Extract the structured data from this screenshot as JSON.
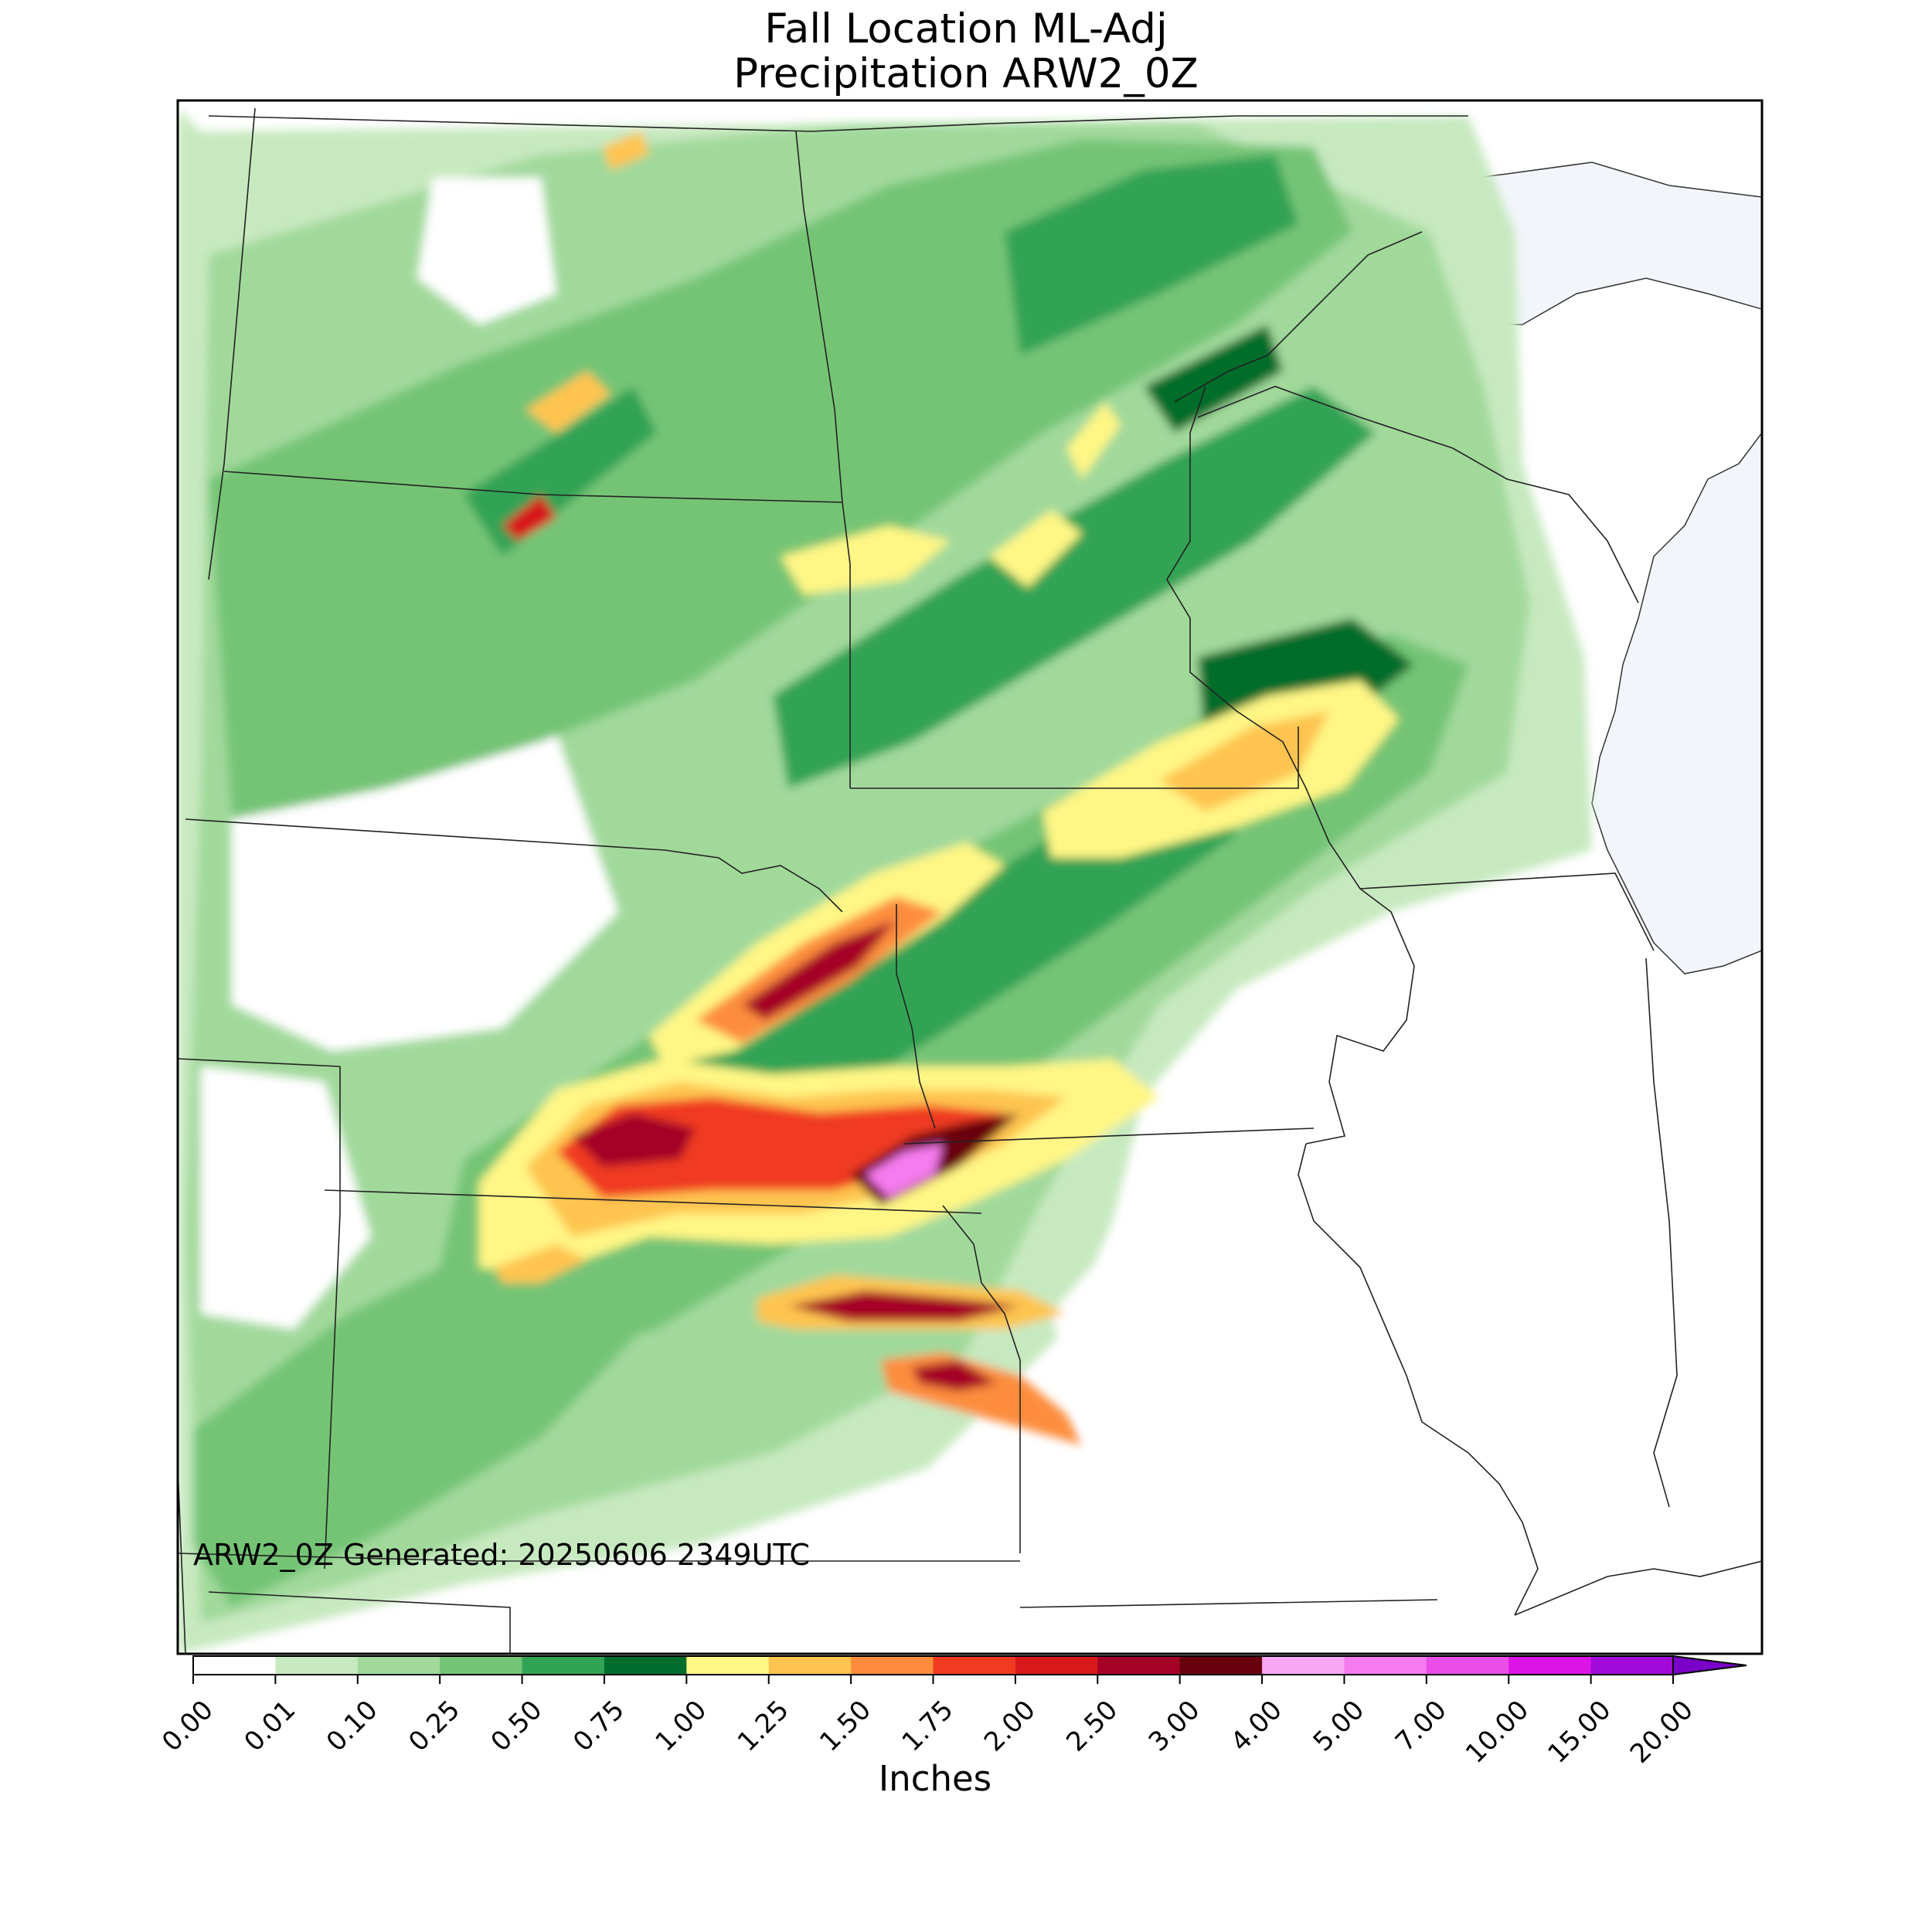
{
  "title": {
    "line1": "Fall Location ML-Adj",
    "line2": "Precipitation ARW2_0Z"
  },
  "footer_note": "ARW2_0Z Generated: 20250606 2349UTC",
  "colorbar": {
    "label": "Inches",
    "ticks": [
      "0.00",
      "0.01",
      "0.10",
      "0.25",
      "0.50",
      "0.75",
      "1.00",
      "1.25",
      "1.50",
      "1.75",
      "2.00",
      "2.50",
      "3.00",
      "4.00",
      "5.00",
      "7.00",
      "10.00",
      "15.00",
      "20.00"
    ],
    "colors": [
      "#ffffff",
      "#c7e9c0",
      "#a1d99b",
      "#74c476",
      "#31a354",
      "#006d2c",
      "#fff685",
      "#fec44f",
      "#fd8d3c",
      "#f03b20",
      "#d7191c",
      "#a50026",
      "#67000d",
      "#f7a6f3",
      "#f57bee",
      "#ea4ee6",
      "#dc14e6",
      "#a10ad8",
      "#7b00c8"
    ]
  },
  "map": {
    "lake_color": "#f2f5fa",
    "border_color": "#333333"
  }
}
